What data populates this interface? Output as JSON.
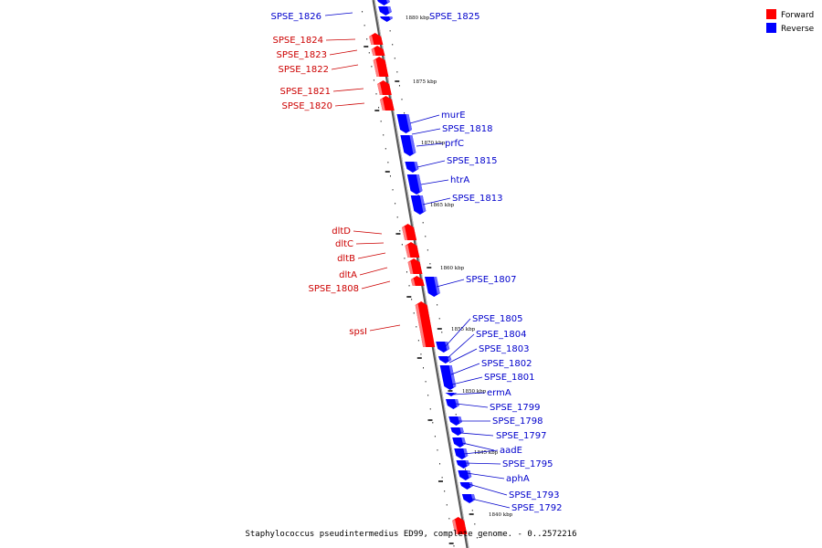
{
  "colors": {
    "forward": "#ff0000",
    "forward_light": "#ff8080",
    "reverse": "#0000ff",
    "reverse_light": "#6a6aff",
    "label_forward": "#cc0000",
    "label_reverse": "#0000cc",
    "backbone": "#888888",
    "tick": "#000000"
  },
  "legend": {
    "forward_label": "Forward",
    "reverse_label": "Reverse"
  },
  "caption": "Staphylococcus pseudintermedius ED99, complete genome. - 0..2572216",
  "scale_labels": [
    "1880 kbp",
    "1875 kbp",
    "1870 kbp",
    "1865 kbp",
    "1860 kbp",
    "1855 kbp",
    "1850 kbp",
    "1845 kbp",
    "1840 kbp"
  ],
  "genes_forward": [
    {
      "name": "SPSE_1826"
    },
    {
      "name": "SPSE_1824"
    },
    {
      "name": "SPSE_1823"
    },
    {
      "name": "SPSE_1822"
    },
    {
      "name": "SPSE_1821"
    },
    {
      "name": "SPSE_1820"
    },
    {
      "name": "dltD"
    },
    {
      "name": "dltC"
    },
    {
      "name": "dltB"
    },
    {
      "name": "dltA"
    },
    {
      "name": "SPSE_1808"
    },
    {
      "name": "spsI"
    }
  ],
  "genes_reverse": [
    {
      "name": "SPSE_1825"
    },
    {
      "name": "murE"
    },
    {
      "name": "SPSE_1818"
    },
    {
      "name": "prfC"
    },
    {
      "name": "SPSE_1815"
    },
    {
      "name": "htrA"
    },
    {
      "name": "SPSE_1813"
    },
    {
      "name": "SPSE_1807"
    },
    {
      "name": "SPSE_1805"
    },
    {
      "name": "SPSE_1804"
    },
    {
      "name": "SPSE_1803"
    },
    {
      "name": "SPSE_1802"
    },
    {
      "name": "SPSE_1801"
    },
    {
      "name": "ermA"
    },
    {
      "name": "SPSE_1799"
    },
    {
      "name": "SPSE_1798"
    },
    {
      "name": "SPSE_1797"
    },
    {
      "name": "aadE"
    },
    {
      "name": "SPSE_1795"
    },
    {
      "name": "aphA"
    },
    {
      "name": "SPSE_1793"
    },
    {
      "name": "SPSE_1792"
    }
  ]
}
